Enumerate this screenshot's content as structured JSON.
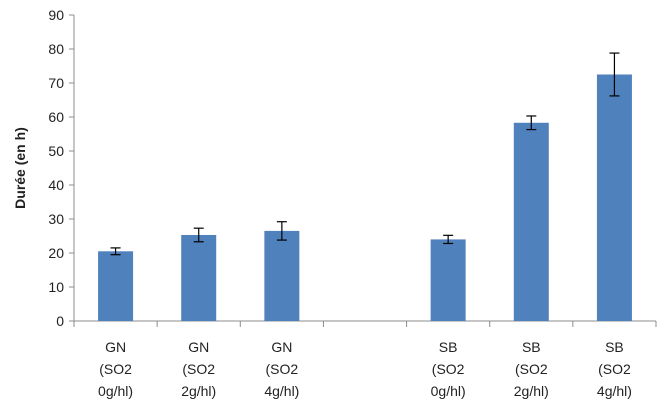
{
  "chart_data": {
    "type": "bar",
    "title": "",
    "xlabel": "",
    "ylabel": "Durée (en h)",
    "ylim": [
      0,
      90
    ],
    "yticks": [
      0,
      10,
      20,
      30,
      40,
      50,
      60,
      70,
      80,
      90
    ],
    "grid": false,
    "legend": "none",
    "bar_color": "#4f81bd",
    "categories": [
      {
        "lines": [
          "GN",
          "(SO2",
          "0g/hl)"
        ]
      },
      {
        "lines": [
          "GN",
          "(SO2",
          "2g/hl)"
        ]
      },
      {
        "lines": [
          "GN",
          "(SO2",
          "4g/hl)"
        ]
      },
      {
        "lines": []
      },
      {
        "lines": [
          "SB",
          "(SO2",
          "0g/hl)"
        ]
      },
      {
        "lines": [
          "SB",
          "(SO2",
          "2g/hl)"
        ]
      },
      {
        "lines": [
          "SB",
          "(SO2",
          "4g/hl)"
        ]
      }
    ],
    "values": [
      20.5,
      25.3,
      26.5,
      null,
      24.0,
      58.3,
      72.5
    ],
    "error": [
      1.0,
      2.0,
      2.7,
      null,
      1.2,
      2.0,
      6.3
    ]
  }
}
